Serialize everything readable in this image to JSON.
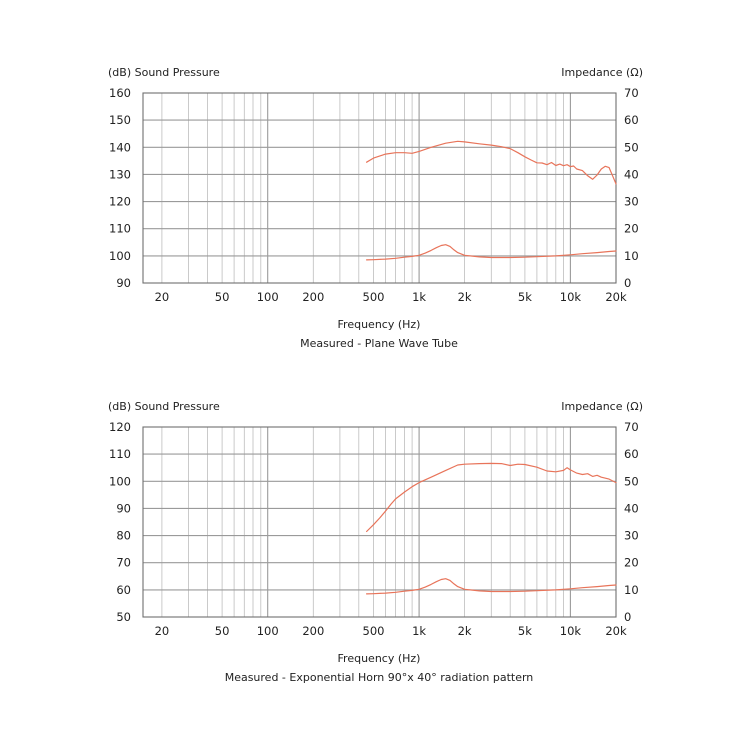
{
  "colors": {
    "curve": "#e8745a",
    "grid": "#bdbdbd",
    "frame": "#6f6f6f",
    "text": "#222222"
  },
  "chart_data": [
    {
      "type": "line",
      "ylabel_left": "(dB) Sound Pressure",
      "ylabel_right": "Impedance (Ω)",
      "xlabel": "Frequency (Hz)",
      "title": "Measured - Plane Wave Tube",
      "xscale": "log",
      "xlim": [
        15,
        20000
      ],
      "xticks": [
        20,
        50,
        100,
        200,
        500,
        1000,
        2000,
        5000,
        10000,
        20000
      ],
      "xtick_labels": [
        "20",
        "50",
        "100",
        "200",
        "500",
        "1k",
        "2k",
        "5k",
        "10k",
        "20k"
      ],
      "ylim_left": [
        90,
        160
      ],
      "yticks_left": [
        90,
        100,
        110,
        120,
        130,
        140,
        150,
        160
      ],
      "ylim_right": [
        0,
        70
      ],
      "yticks_right": [
        0,
        10,
        20,
        30,
        40,
        50,
        60,
        70
      ],
      "grid": true,
      "series": [
        {
          "name": "Sound Pressure",
          "axis": "left",
          "x": [
            450,
            500,
            600,
            700,
            800,
            900,
            1000,
            1200,
            1500,
            1800,
            2000,
            2500,
            3000,
            3500,
            4000,
            4500,
            5000,
            5500,
            6000,
            6500,
            7000,
            7500,
            8000,
            8500,
            9000,
            9500,
            10000,
            10500,
            11000,
            12000,
            13000,
            14000,
            15000,
            16000,
            17000,
            18000,
            19000,
            20000
          ],
          "y": [
            134.5,
            136,
            137.5,
            138,
            138,
            137.8,
            138.5,
            140,
            141.5,
            142.2,
            142,
            141.3,
            140.8,
            140.2,
            139.5,
            138,
            136.5,
            135.3,
            134.3,
            134.2,
            133.6,
            134.4,
            133.3,
            133.8,
            133.2,
            133.6,
            132.9,
            133.1,
            132,
            131.4,
            129.5,
            128.2,
            129.8,
            132,
            133,
            132.5,
            129.5,
            126.5
          ]
        },
        {
          "name": "Impedance",
          "axis": "right",
          "x": [
            450,
            500,
            600,
            700,
            800,
            900,
            1000,
            1100,
            1200,
            1300,
            1400,
            1500,
            1600,
            1700,
            1800,
            2000,
            2500,
            3000,
            4000,
            5000,
            6000,
            8000,
            10000,
            12000,
            15000,
            18000,
            20000
          ],
          "y": [
            8.5,
            8.6,
            8.8,
            9.1,
            9.5,
            9.8,
            10.2,
            11,
            12,
            13,
            13.8,
            14.1,
            13.5,
            12.2,
            11.2,
            10.2,
            9.6,
            9.4,
            9.4,
            9.5,
            9.7,
            10,
            10.4,
            10.8,
            11.2,
            11.6,
            11.8
          ]
        }
      ]
    },
    {
      "type": "line",
      "ylabel_left": "(dB) Sound Pressure",
      "ylabel_right": "Impedance (Ω)",
      "xlabel": "Frequency (Hz)",
      "title": "Measured - Exponential Horn 90°x 40° radiation pattern",
      "xscale": "log",
      "xlim": [
        15,
        20000
      ],
      "xticks": [
        20,
        50,
        100,
        200,
        500,
        1000,
        2000,
        5000,
        10000,
        20000
      ],
      "xtick_labels": [
        "20",
        "50",
        "100",
        "200",
        "500",
        "1k",
        "2k",
        "5k",
        "10k",
        "20k"
      ],
      "ylim_left": [
        50,
        120
      ],
      "yticks_left": [
        50,
        60,
        70,
        80,
        90,
        100,
        110,
        120
      ],
      "ylim_right": [
        0,
        70
      ],
      "yticks_right": [
        0,
        10,
        20,
        30,
        40,
        50,
        60,
        70
      ],
      "grid": true,
      "series": [
        {
          "name": "Sound Pressure",
          "axis": "left",
          "x": [
            450,
            500,
            550,
            600,
            650,
            700,
            800,
            900,
            1000,
            1200,
            1500,
            1800,
            2000,
            2500,
            3000,
            3500,
            4000,
            4500,
            5000,
            6000,
            7000,
            8000,
            9000,
            9500,
            10000,
            11000,
            12000,
            13000,
            14000,
            15000,
            16000,
            18000,
            20000
          ],
          "y": [
            81.5,
            84,
            86.5,
            89,
            91.5,
            93.5,
            96,
            98,
            99.5,
            101.5,
            104,
            106,
            106.3,
            106.5,
            106.6,
            106.5,
            105.8,
            106.3,
            106.2,
            105.2,
            103.8,
            103.5,
            104,
            105,
            104.2,
            103,
            102.5,
            102.8,
            101.8,
            102.2,
            101.5,
            100.8,
            99.5
          ]
        },
        {
          "name": "Impedance",
          "axis": "right",
          "x": [
            450,
            500,
            600,
            700,
            800,
            900,
            1000,
            1100,
            1200,
            1300,
            1400,
            1500,
            1600,
            1700,
            1800,
            2000,
            2500,
            3000,
            4000,
            5000,
            6000,
            8000,
            10000,
            12000,
            15000,
            18000,
            20000
          ],
          "y": [
            8.5,
            8.6,
            8.8,
            9.1,
            9.5,
            9.8,
            10.2,
            11,
            12,
            13,
            13.8,
            14.1,
            13.5,
            12.2,
            11.2,
            10.2,
            9.6,
            9.4,
            9.4,
            9.5,
            9.7,
            10,
            10.4,
            10.8,
            11.2,
            11.6,
            11.8
          ]
        }
      ]
    }
  ]
}
